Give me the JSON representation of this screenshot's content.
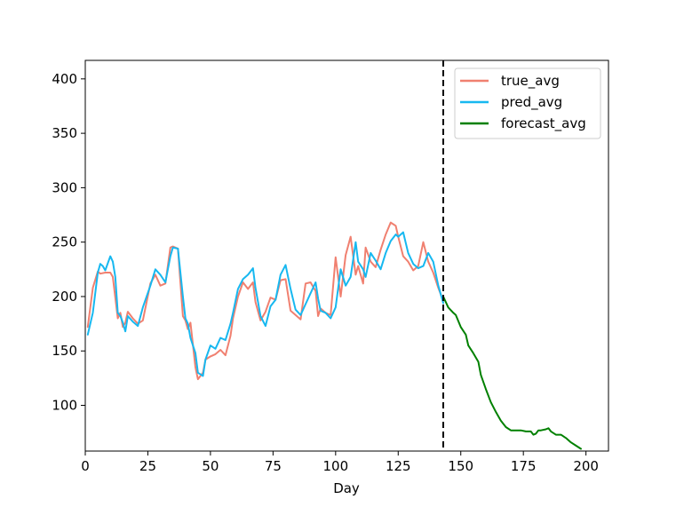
{
  "chart_data": {
    "type": "line",
    "title": "",
    "xlabel": "Day",
    "ylabel": "",
    "xlim": [
      0,
      209
    ],
    "ylim": [
      58,
      417
    ],
    "xticks": [
      0,
      25,
      50,
      75,
      100,
      125,
      150,
      175,
      200
    ],
    "yticks": [
      100,
      150,
      200,
      250,
      300,
      350,
      400
    ],
    "grid": false,
    "legend_position": "top-right",
    "vline_x": 143,
    "series": [
      {
        "name": "true_avg",
        "color": "#f08070",
        "x": [
          1,
          3,
          5,
          6,
          8,
          10,
          11,
          13,
          14,
          15,
          16,
          17,
          19,
          21,
          23,
          26,
          28,
          30,
          32,
          34,
          35,
          37,
          39,
          40,
          41,
          42,
          44,
          45,
          47,
          48,
          50,
          52,
          54,
          56,
          58,
          59,
          61,
          63,
          65,
          67,
          68,
          70,
          72,
          74,
          76,
          78,
          80,
          82,
          84,
          86,
          88,
          90,
          92,
          93,
          94,
          96,
          98,
          100,
          102,
          104,
          106,
          108,
          109,
          111,
          112,
          114,
          116,
          118,
          120,
          122,
          124,
          125,
          127,
          129,
          131,
          133,
          135,
          137,
          139,
          141,
          143
        ],
        "y": [
          172,
          208,
          223,
          221,
          222,
          222,
          218,
          180,
          185,
          172,
          176,
          186,
          180,
          175,
          178,
          212,
          220,
          210,
          212,
          245,
          246,
          244,
          182,
          178,
          170,
          176,
          135,
          124,
          130,
          142,
          145,
          147,
          151,
          146,
          164,
          180,
          200,
          213,
          207,
          213,
          195,
          178,
          186,
          199,
          197,
          215,
          216,
          187,
          183,
          179,
          212,
          213,
          205,
          182,
          189,
          185,
          183,
          236,
          200,
          238,
          255,
          220,
          228,
          212,
          245,
          232,
          227,
          243,
          257,
          268,
          265,
          255,
          237,
          232,
          224,
          228,
          250,
          232,
          222,
          208,
          196
        ]
      },
      {
        "name": "pred_avg",
        "color": "#17b8f0",
        "x": [
          1,
          3,
          5,
          6,
          7,
          8,
          10,
          11,
          12,
          13,
          14,
          15,
          16,
          17,
          19,
          21,
          23,
          26,
          28,
          30,
          32,
          34,
          35,
          37,
          39,
          40,
          41,
          42,
          44,
          45,
          47,
          48,
          50,
          52,
          54,
          56,
          58,
          59,
          61,
          63,
          65,
          67,
          68,
          70,
          72,
          74,
          76,
          78,
          80,
          82,
          84,
          86,
          88,
          90,
          92,
          93,
          94,
          96,
          98,
          100,
          102,
          104,
          106,
          108,
          109,
          111,
          112,
          114,
          116,
          118,
          120,
          122,
          124,
          125,
          127,
          129,
          131,
          133,
          135,
          137,
          139,
          141,
          143
        ],
        "y": [
          165,
          185,
          222,
          230,
          228,
          224,
          237,
          232,
          218,
          185,
          182,
          176,
          168,
          182,
          177,
          173,
          190,
          210,
          225,
          220,
          213,
          237,
          245,
          244,
          200,
          180,
          175,
          162,
          148,
          130,
          127,
          142,
          155,
          152,
          162,
          160,
          175,
          185,
          207,
          216,
          220,
          226,
          208,
          182,
          173,
          191,
          197,
          220,
          229,
          207,
          188,
          183,
          193,
          203,
          213,
          198,
          187,
          185,
          180,
          190,
          225,
          210,
          218,
          250,
          232,
          225,
          218,
          240,
          233,
          225,
          240,
          251,
          257,
          255,
          259,
          240,
          230,
          226,
          228,
          240,
          232,
          210,
          194
        ]
      },
      {
        "name": "forecast_avg",
        "color": "#008000",
        "x": [
          143,
          145,
          147,
          148,
          150,
          152,
          153,
          155,
          157,
          158,
          160,
          162,
          164,
          166,
          168,
          170,
          172,
          174,
          176,
          178,
          179,
          180,
          181,
          182,
          184,
          185,
          186,
          188,
          190,
          192,
          194,
          196,
          198
        ],
        "y": [
          200,
          190,
          185,
          183,
          172,
          165,
          155,
          148,
          140,
          128,
          115,
          103,
          94,
          86,
          80,
          77,
          77,
          77,
          76,
          76,
          73,
          74,
          77,
          77,
          78,
          79,
          76,
          73,
          73,
          70,
          66,
          63,
          60
        ]
      }
    ]
  }
}
